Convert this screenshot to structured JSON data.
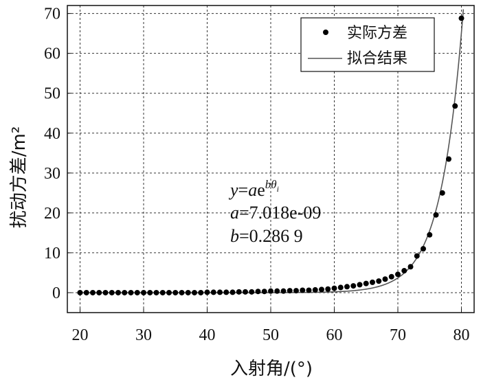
{
  "chart_data": {
    "type": "scatter",
    "xlabel": "入射角/(°)",
    "ylabel": "扰动方差/m²",
    "xlim": [
      18,
      82
    ],
    "ylim": [
      -5,
      72
    ],
    "xticks": [
      20,
      30,
      40,
      50,
      60,
      70,
      80
    ],
    "yticks": [
      0,
      10,
      20,
      30,
      40,
      50,
      60,
      70
    ],
    "grid": true,
    "legend_position": "top-right",
    "series": [
      {
        "name": "实际方差",
        "kind": "scatter",
        "color": "#000000",
        "x": [
          20,
          21,
          22,
          23,
          24,
          25,
          26,
          27,
          28,
          29,
          30,
          31,
          32,
          33,
          34,
          35,
          36,
          37,
          38,
          39,
          40,
          41,
          42,
          43,
          44,
          45,
          46,
          47,
          48,
          49,
          50,
          51,
          52,
          53,
          54,
          55,
          56,
          57,
          58,
          59,
          60,
          61,
          62,
          63,
          64,
          65,
          66,
          67,
          68,
          69,
          70,
          71,
          72,
          73,
          74,
          75,
          76,
          77,
          78,
          79,
          80
        ],
        "y": [
          0,
          0,
          0,
          0,
          0,
          0,
          0,
          0,
          0,
          0,
          0,
          0,
          0,
          0,
          0,
          0,
          0,
          0,
          0,
          0,
          0.1,
          0.1,
          0.1,
          0.1,
          0.1,
          0.2,
          0.2,
          0.2,
          0.3,
          0.3,
          0.4,
          0.4,
          0.4,
          0.5,
          0.5,
          0.6,
          0.6,
          0.7,
          0.8,
          0.9,
          1.1,
          1.3,
          1.5,
          1.7,
          2.0,
          2.3,
          2.6,
          2.9,
          3.4,
          4.0,
          4.6,
          5.5,
          6.5,
          9.2,
          11.0,
          14.5,
          19.5,
          25.0,
          33.5,
          46.8,
          68.8
        ]
      },
      {
        "name": "拟合结果",
        "kind": "line",
        "color": "#555555",
        "formula": {
          "a": 7.018e-09,
          "b": 0.2869
        }
      }
    ],
    "annotation": {
      "equation": "y=ae",
      "exponent": "bθ",
      "subscript": "i",
      "a_label": "a=7.018e-09",
      "b_label": "b=0.286 9"
    }
  }
}
